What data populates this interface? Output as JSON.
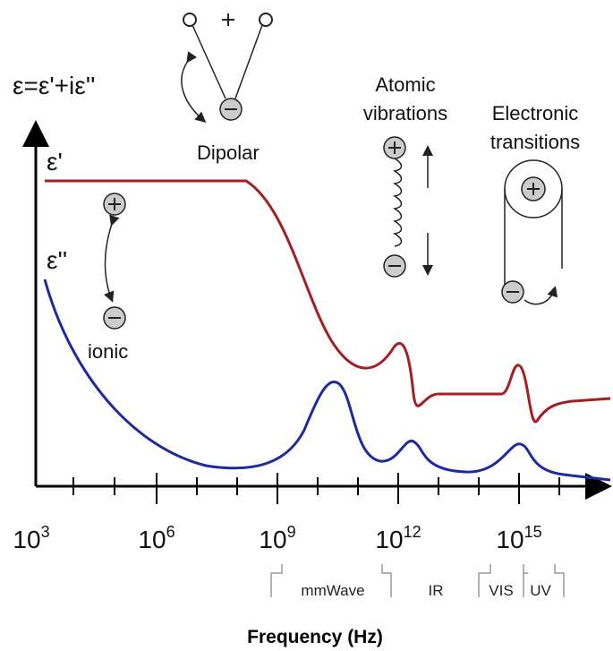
{
  "formula": "ε=ε'+iε''",
  "curves": {
    "real": "ε'",
    "imaginary": "ε''"
  },
  "mechanisms": {
    "ionic": "ionic",
    "dipolar": "Dipolar",
    "atomic": [
      "Atomic",
      "vibrations"
    ],
    "electronic": [
      "Electronic",
      "transitions"
    ]
  },
  "x_axis": {
    "label": "Frequency (Hz)",
    "ticks": [
      {
        "base": "10",
        "exp": "3"
      },
      {
        "base": "10",
        "exp": "6"
      },
      {
        "base": "10",
        "exp": "9"
      },
      {
        "base": "10",
        "exp": "12"
      },
      {
        "base": "10",
        "exp": "15"
      }
    ]
  },
  "bands": [
    "mmWave",
    "IR",
    "VIS",
    "UV"
  ]
}
